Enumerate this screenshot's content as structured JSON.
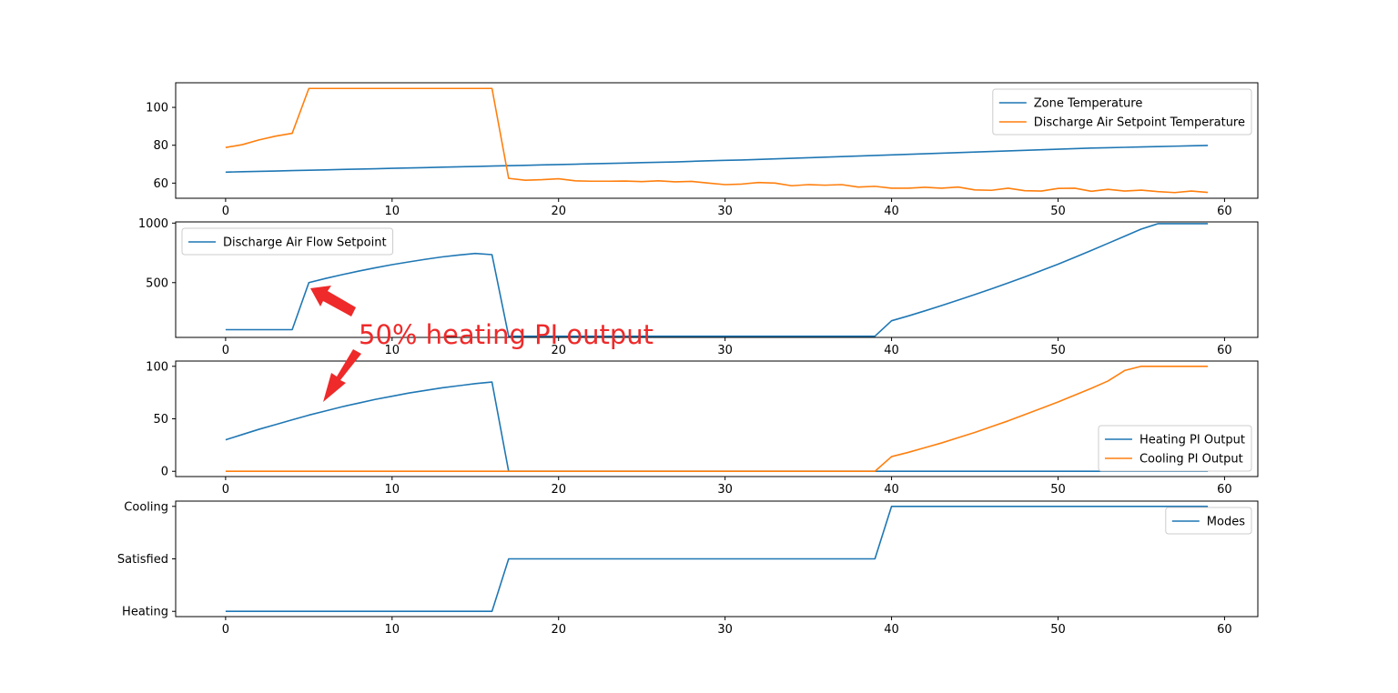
{
  "colors": {
    "blue": "#1f77b4",
    "orange": "#ff7f0e",
    "annotation": "#ee2a2a"
  },
  "annotation": {
    "text": "50% heating PI output"
  },
  "chart_data": [
    {
      "type": "line",
      "x": [
        0,
        1,
        2,
        3,
        4,
        5,
        6,
        7,
        8,
        9,
        10,
        11,
        12,
        13,
        14,
        15,
        16,
        17,
        18,
        19,
        20,
        21,
        22,
        23,
        24,
        25,
        26,
        27,
        28,
        29,
        30,
        31,
        32,
        33,
        34,
        35,
        36,
        37,
        38,
        39,
        40,
        41,
        42,
        43,
        44,
        45,
        46,
        47,
        48,
        49,
        50,
        51,
        52,
        53,
        54,
        55,
        56,
        57,
        58,
        59
      ],
      "xlim": [
        -3,
        62
      ],
      "xticks": [
        0,
        10,
        20,
        30,
        40,
        50,
        60
      ],
      "ylim": [
        52,
        113
      ],
      "yticks": [
        60,
        80,
        100
      ],
      "ytick_labels": [
        "60",
        "80",
        "100"
      ],
      "legend": "top-right",
      "series": [
        {
          "name": "Zone Temperature",
          "color": "#1f77b4",
          "values": [
            65.8,
            66.0,
            66.2,
            66.4,
            66.6,
            66.8,
            67.0,
            67.2,
            67.4,
            67.6,
            67.8,
            68.0,
            68.2,
            68.4,
            68.6,
            68.8,
            69.0,
            69.2,
            69.4,
            69.6,
            69.8,
            70.0,
            70.2,
            70.4,
            70.6,
            70.8,
            71.0,
            71.2,
            71.5,
            71.8,
            72.0,
            72.2,
            72.5,
            72.8,
            73.1,
            73.4,
            73.7,
            74.0,
            74.3,
            74.6,
            74.9,
            75.2,
            75.5,
            75.8,
            76.1,
            76.4,
            76.7,
            77.0,
            77.3,
            77.6,
            77.9,
            78.2,
            78.5,
            78.7,
            78.9,
            79.1,
            79.3,
            79.5,
            79.7,
            79.9
          ]
        },
        {
          "name": "Discharge Air Setpoint Temperature",
          "color": "#ff7f0e",
          "values": [
            78.8,
            80.3,
            82.8,
            84.8,
            86.3,
            110,
            110,
            110,
            110,
            110,
            110,
            110,
            110,
            110,
            110,
            110,
            110,
            62.5,
            61.5,
            61.8,
            62.3,
            61.2,
            61.0,
            61.0,
            61.1,
            60.8,
            61.2,
            60.7,
            60.9,
            60.0,
            59.2,
            59.5,
            60.3,
            60.0,
            58.6,
            59.2,
            58.9,
            59.2,
            57.9,
            58.3,
            57.3,
            57.3,
            57.8,
            57.3,
            57.9,
            56.4,
            56.2,
            57.3,
            56.0,
            55.8,
            57.2,
            57.3,
            55.7,
            56.7,
            55.8,
            56.3,
            55.5,
            55.0,
            55.8,
            55.1
          ]
        }
      ]
    },
    {
      "type": "line",
      "x": [
        0,
        1,
        2,
        3,
        4,
        5,
        6,
        7,
        8,
        9,
        10,
        11,
        12,
        13,
        14,
        15,
        16,
        17,
        18,
        19,
        20,
        21,
        22,
        23,
        24,
        25,
        26,
        27,
        28,
        29,
        30,
        31,
        32,
        33,
        34,
        35,
        36,
        37,
        38,
        39,
        40,
        41,
        42,
        43,
        44,
        45,
        46,
        47,
        48,
        49,
        50,
        51,
        52,
        53,
        54,
        55,
        56,
        57,
        58,
        59
      ],
      "xlim": [
        -3,
        62
      ],
      "xticks": [
        0,
        10,
        20,
        30,
        40,
        50,
        60
      ],
      "ylim": [
        40,
        1010
      ],
      "yticks": [
        500,
        1000
      ],
      "ytick_labels": [
        "500",
        "1000"
      ],
      "legend": "top-left",
      "series": [
        {
          "name": "Discharge Air Flow Setpoint",
          "color": "#1f77b4",
          "values": [
            105,
            105,
            105,
            105,
            105,
            500,
            535,
            567,
            597,
            625,
            651,
            674,
            696,
            716,
            732,
            745,
            735,
            50,
            50,
            50,
            50,
            50,
            50,
            50,
            50,
            50,
            50,
            50,
            50,
            50,
            50,
            50,
            50,
            50,
            50,
            50,
            50,
            50,
            50,
            50,
            180,
            220,
            263,
            307,
            353,
            400,
            448,
            497,
            548,
            601,
            655,
            712,
            770,
            830,
            890,
            950,
            995,
            995,
            995,
            995
          ]
        }
      ]
    },
    {
      "type": "line",
      "x": [
        0,
        1,
        2,
        3,
        4,
        5,
        6,
        7,
        8,
        9,
        10,
        11,
        12,
        13,
        14,
        15,
        16,
        17,
        18,
        19,
        20,
        21,
        22,
        23,
        24,
        25,
        26,
        27,
        28,
        29,
        30,
        31,
        32,
        33,
        34,
        35,
        36,
        37,
        38,
        39,
        40,
        41,
        42,
        43,
        44,
        45,
        46,
        47,
        48,
        49,
        50,
        51,
        52,
        53,
        54,
        55,
        56,
        57,
        58,
        59
      ],
      "xlim": [
        -3,
        62
      ],
      "xticks": [
        0,
        10,
        20,
        30,
        40,
        50,
        60
      ],
      "ylim": [
        -5,
        105
      ],
      "yticks": [
        0,
        50,
        100
      ],
      "ytick_labels": [
        "0",
        "50",
        "100"
      ],
      "legend": "lower-right",
      "series": [
        {
          "name": "Heating PI Output",
          "color": "#1f77b4",
          "values": [
            30,
            35,
            40,
            44.5,
            49,
            53.5,
            57.5,
            61.5,
            65,
            68.5,
            71.5,
            74.5,
            77,
            79.5,
            81.5,
            83.5,
            85,
            0,
            0,
            0,
            0,
            0,
            0,
            0,
            0,
            0,
            0,
            0,
            0,
            0,
            0,
            0,
            0,
            0,
            0,
            0,
            0,
            0,
            0,
            0,
            0,
            0,
            0,
            0,
            0,
            0,
            0,
            0,
            0,
            0,
            0,
            0,
            0,
            0,
            0,
            0,
            0,
            0,
            0,
            0
          ]
        },
        {
          "name": "Cooling PI Output",
          "color": "#ff7f0e",
          "values": [
            0,
            0,
            0,
            0,
            0,
            0,
            0,
            0,
            0,
            0,
            0,
            0,
            0,
            0,
            0,
            0,
            0,
            0,
            0,
            0,
            0,
            0,
            0,
            0,
            0,
            0,
            0,
            0,
            0,
            0,
            0,
            0,
            0,
            0,
            0,
            0,
            0,
            0,
            0,
            0,
            14,
            18,
            22.5,
            27,
            32,
            37,
            42.5,
            48,
            54,
            60,
            66,
            72.5,
            79,
            86,
            96,
            100,
            100,
            100,
            100,
            100
          ]
        }
      ]
    },
    {
      "type": "line",
      "x": [
        0,
        1,
        2,
        3,
        4,
        5,
        6,
        7,
        8,
        9,
        10,
        11,
        12,
        13,
        14,
        15,
        16,
        17,
        18,
        19,
        20,
        21,
        22,
        23,
        24,
        25,
        26,
        27,
        28,
        29,
        30,
        31,
        32,
        33,
        34,
        35,
        36,
        37,
        38,
        39,
        40,
        41,
        42,
        43,
        44,
        45,
        46,
        47,
        48,
        49,
        50,
        51,
        52,
        53,
        54,
        55,
        56,
        57,
        58,
        59
      ],
      "xlim": [
        -3,
        62
      ],
      "xticks": [
        0,
        10,
        20,
        30,
        40,
        50,
        60
      ],
      "ylim": [
        -0.1,
        2.1
      ],
      "yticks": [
        0,
        1,
        2
      ],
      "ytick_labels": [
        "Heating",
        "Satisfied",
        "Cooling"
      ],
      "legend": "top-right",
      "series": [
        {
          "name": "Modes",
          "color": "#1f77b4",
          "values": [
            0,
            0,
            0,
            0,
            0,
            0,
            0,
            0,
            0,
            0,
            0,
            0,
            0,
            0,
            0,
            0,
            0,
            1,
            1,
            1,
            1,
            1,
            1,
            1,
            1,
            1,
            1,
            1,
            1,
            1,
            1,
            1,
            1,
            1,
            1,
            1,
            1,
            1,
            1,
            1,
            2,
            2,
            2,
            2,
            2,
            2,
            2,
            2,
            2,
            2,
            2,
            2,
            2,
            2,
            2,
            2,
            2,
            2,
            2,
            2
          ]
        }
      ]
    }
  ]
}
